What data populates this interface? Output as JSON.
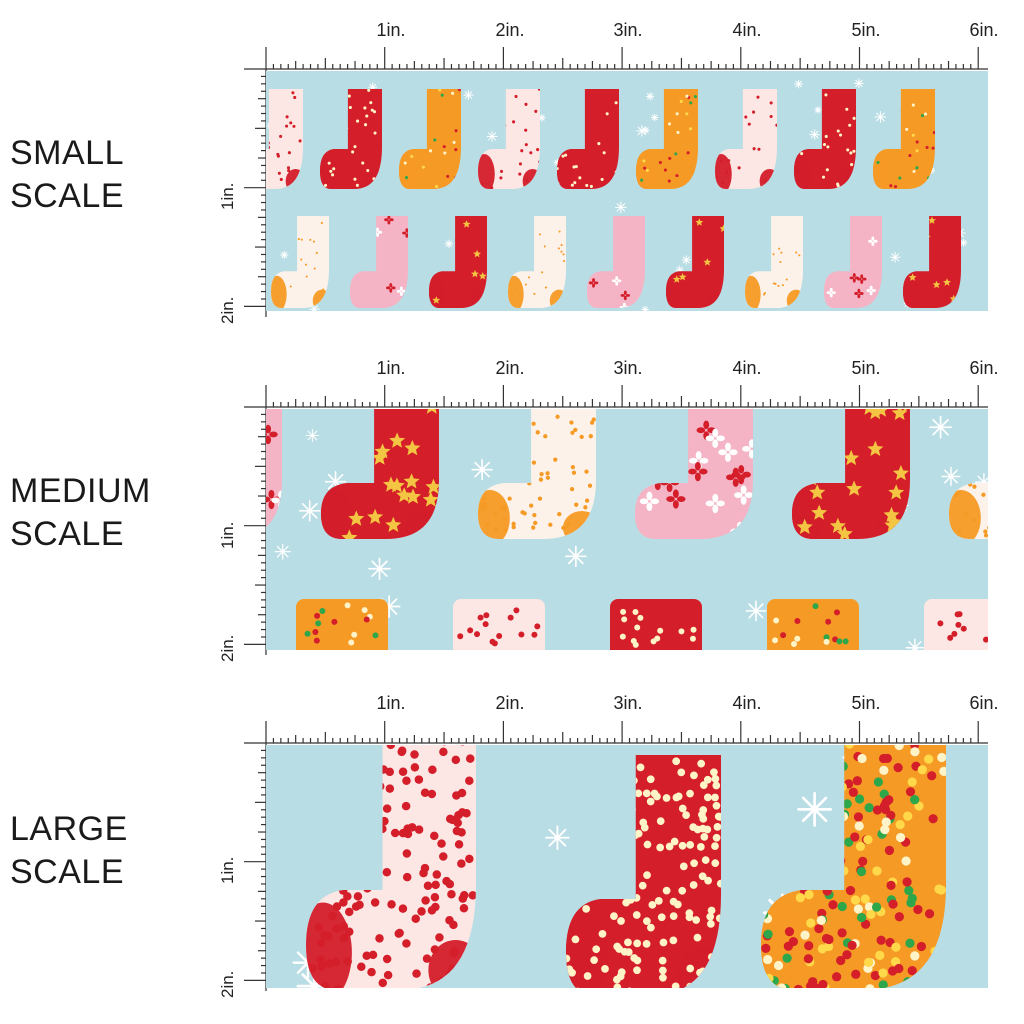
{
  "rows": [
    {
      "label_line1": "SMALL",
      "label_line2": "SCALE",
      "pattern": "small"
    },
    {
      "label_line1": "MEDIUM",
      "label_line2": "SCALE",
      "pattern": "medium"
    },
    {
      "label_line1": "LARGE",
      "label_line2": "SCALE",
      "pattern": "large"
    }
  ],
  "ruler": {
    "top_labels": [
      "1in.",
      "2in.",
      "3in.",
      "4in.",
      "5in.",
      "6in."
    ],
    "side_labels": [
      "1in.",
      "2in."
    ]
  },
  "colors": {
    "background": "#b9dde4",
    "red": "#d41e2a",
    "orange": "#f59a25",
    "pink": "#f4b4c6",
    "cream": "#fce7e4",
    "white": "#ffffff",
    "star": "#f4c542",
    "green": "#2ea64a"
  }
}
